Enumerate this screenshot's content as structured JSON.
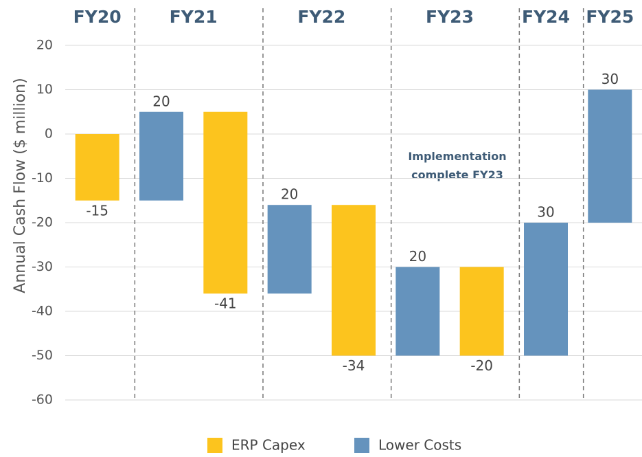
{
  "chart_data": {
    "type": "waterfall",
    "y_label": "Annual Cash Flow ($ million)",
    "groups": [
      {
        "label": "FY20",
        "size": 1
      },
      {
        "label": "FY21",
        "size": 2
      },
      {
        "label": "FY22",
        "size": 2
      },
      {
        "label": "FY23",
        "size": 2
      },
      {
        "label": "FY24",
        "size": 1
      },
      {
        "label": "FY25",
        "size": 1
      }
    ],
    "series": [
      {
        "name": "ERP Capex",
        "color": "#fcc41e",
        "values": [
          -15,
          null,
          -41,
          null,
          -34,
          null,
          -20,
          null,
          null
        ]
      },
      {
        "name": "Lower Costs",
        "color": "#6593bd",
        "values": [
          null,
          20,
          null,
          20,
          null,
          20,
          null,
          30,
          30
        ]
      }
    ],
    "ylim": [
      -60,
      20
    ],
    "yticks": [
      -60,
      -50,
      -40,
      -30,
      -20,
      -10,
      0,
      10,
      20
    ],
    "grid": true,
    "annotation": "Implementation complete FY23"
  }
}
